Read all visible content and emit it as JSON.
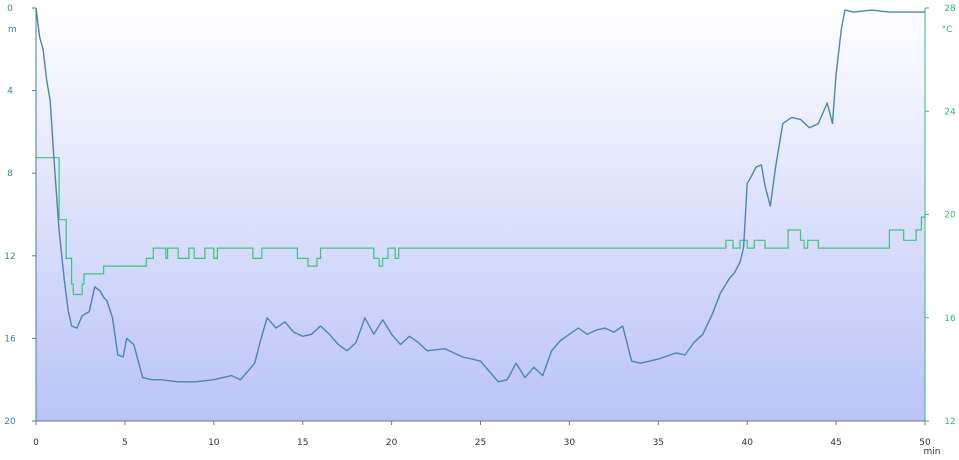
{
  "chart_data": {
    "type": "line",
    "title": "",
    "xlabel": "min",
    "ylabel_left": "m",
    "ylabel_right": "°C",
    "xlim": [
      0,
      50
    ],
    "ylim_left": [
      0,
      20
    ],
    "ylim_right": [
      12,
      28
    ],
    "left_axis_inverted": true,
    "grid": false,
    "legend": "none",
    "x_ticks": [
      "0",
      "5",
      "10",
      "15",
      "20",
      "25",
      "30",
      "35",
      "40",
      "45",
      "50"
    ],
    "y_left_ticks": [
      "0",
      "4",
      "8",
      "12",
      "16",
      "20"
    ],
    "y_right_ticks": [
      "28",
      "24",
      "20",
      "16",
      "12"
    ],
    "colors": {
      "depth": "#4a86ad",
      "temperature": "#3ec47a",
      "background_top": "#ffffff",
      "background_bottom": "#b9c3f7",
      "left_axis": "#3f7fa8",
      "right_axis": "#2fbf66"
    },
    "series": [
      {
        "axis": "left",
        "x": [
          0,
          0.2,
          0.4,
          0.6,
          0.8,
          1.0,
          1.3,
          1.6,
          1.8,
          2.0,
          2.3,
          2.6,
          3.0,
          3.3,
          3.6,
          3.8,
          4.0,
          4.3,
          4.6,
          4.9,
          5.1,
          5.5,
          6.0,
          6.5,
          7.0,
          8.0,
          9.0,
          10.0,
          11.0,
          11.5,
          12.0,
          12.3,
          12.6,
          13.0,
          13.5,
          14.0,
          14.5,
          15.0,
          15.5,
          16.0,
          16.5,
          17.0,
          17.5,
          18.0,
          18.5,
          19.0,
          19.5,
          20.0,
          20.5,
          21.0,
          21.5,
          22.0,
          23.0,
          24.0,
          25.0,
          25.5,
          26.0,
          26.5,
          27.0,
          27.5,
          28.0,
          28.5,
          29.0,
          29.5,
          30.0,
          30.5,
          31.0,
          31.5,
          32.0,
          32.5,
          33.0,
          33.5,
          34.0,
          35.0,
          36.0,
          36.5,
          37.0,
          37.5,
          38.0,
          38.5,
          39.0,
          39.3,
          39.6,
          39.8,
          40.0,
          40.2,
          40.5,
          40.8,
          41.0,
          41.3,
          41.6,
          42.0,
          42.5,
          43.0,
          43.5,
          44.0,
          44.5,
          44.8,
          45.0,
          45.3,
          45.5,
          46.0,
          47.0,
          48.0,
          49.0,
          50.0
        ],
        "values": [
          0,
          1.4,
          2.0,
          3.5,
          4.5,
          7.2,
          10.8,
          13.2,
          14.6,
          15.4,
          15.5,
          14.9,
          14.7,
          13.5,
          13.7,
          14.0,
          14.2,
          15.0,
          16.8,
          16.9,
          16.0,
          16.3,
          17.9,
          18.0,
          18.0,
          18.1,
          18.1,
          18.0,
          17.8,
          18.0,
          17.5,
          17.2,
          16.2,
          15.0,
          15.5,
          15.2,
          15.7,
          15.9,
          15.8,
          15.4,
          15.8,
          16.3,
          16.6,
          16.2,
          15.0,
          15.8,
          15.1,
          15.8,
          16.3,
          15.9,
          16.2,
          16.6,
          16.5,
          16.9,
          17.1,
          17.6,
          18.1,
          18.0,
          17.2,
          17.9,
          17.4,
          17.8,
          16.6,
          16.1,
          15.8,
          15.5,
          15.8,
          15.6,
          15.5,
          15.7,
          15.4,
          17.1,
          17.2,
          17.0,
          16.7,
          16.8,
          16.2,
          15.8,
          14.9,
          13.8,
          13.1,
          12.8,
          12.3,
          11.6,
          8.5,
          8.2,
          7.7,
          7.6,
          8.6,
          9.6,
          7.7,
          5.6,
          5.3,
          5.4,
          5.8,
          5.6,
          4.6,
          5.6,
          3.2,
          1.0,
          0.1,
          0.2,
          0.1,
          0.2,
          0.2,
          0.2
        ]
      },
      {
        "axis": "right",
        "x": [
          0,
          0.8,
          1.0,
          1.3,
          1.7,
          2.0,
          2.1,
          2.6,
          2.7,
          3.0,
          3.7,
          3.8,
          4.0,
          4.1,
          5.0,
          6.0,
          6.2,
          6.4,
          6.6,
          6.8,
          7.3,
          7.4,
          7.8,
          8.0,
          8.4,
          8.6,
          8.9,
          9.3,
          9.5,
          10.0,
          10.2,
          10.8,
          11.0,
          12.0,
          12.2,
          12.7,
          14.5,
          14.7,
          15.2,
          15.3,
          15.8,
          16.0,
          18.8,
          19.0,
          19.3,
          19.5,
          19.8,
          20.2,
          20.4,
          23.0,
          38.0,
          38.7,
          38.8,
          39.1,
          39.2,
          39.6,
          40.0,
          40.4,
          40.5,
          41.0,
          42.0,
          42.3,
          42.5,
          43.0,
          43.2,
          43.4,
          44.0,
          44.5,
          47.0,
          48.0,
          48.3,
          48.8,
          49.0,
          49.5,
          49.8,
          50.0
        ],
        "values": [
          22.2,
          22.2,
          22.2,
          19.8,
          18.3,
          17.3,
          16.9,
          17.3,
          17.7,
          17.7,
          17.7,
          18.0,
          18.0,
          18.0,
          18.0,
          18.0,
          18.3,
          18.3,
          18.7,
          18.7,
          18.3,
          18.7,
          18.7,
          18.3,
          18.3,
          18.7,
          18.3,
          18.3,
          18.7,
          18.3,
          18.7,
          18.7,
          18.7,
          18.7,
          18.3,
          18.7,
          18.7,
          18.3,
          18.3,
          18.0,
          18.3,
          18.7,
          18.7,
          18.3,
          18.0,
          18.3,
          18.7,
          18.3,
          18.7,
          18.7,
          18.7,
          18.7,
          19.0,
          19.0,
          18.7,
          19.0,
          18.7,
          19.0,
          19.0,
          18.7,
          18.7,
          19.4,
          19.4,
          19.0,
          18.7,
          19.0,
          18.7,
          18.7,
          18.7,
          19.4,
          19.4,
          19.0,
          19.0,
          19.4,
          19.9,
          19.9
        ]
      }
    ]
  }
}
